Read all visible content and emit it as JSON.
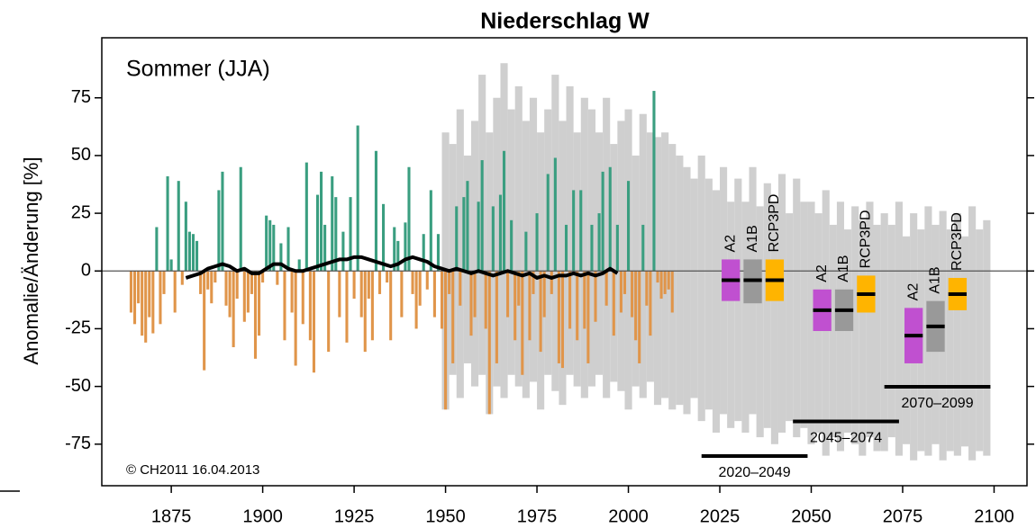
{
  "chart_data": {
    "type": "bar",
    "title": "Niederschlag W",
    "subtitle": "Sommer (JJA)",
    "ylabel": "Anomalie/Änderung [%]",
    "copyright": "© CH2011 16.04.2013",
    "xlim": [
      1856,
      2109
    ],
    "ylim": [
      -93,
      101
    ],
    "xticks": [
      1875,
      1900,
      1925,
      1950,
      1975,
      2000,
      2025,
      2050,
      2075,
      2100
    ],
    "yticks": [
      -75,
      -50,
      -25,
      0,
      25,
      50,
      75
    ],
    "annual": {
      "positive_color": "#3a9e80",
      "negative_color": "#e0954a",
      "x": [
        1864,
        1865,
        1866,
        1867,
        1868,
        1869,
        1870,
        1871,
        1872,
        1873,
        1874,
        1875,
        1876,
        1877,
        1878,
        1879,
        1880,
        1881,
        1882,
        1883,
        1884,
        1885,
        1886,
        1887,
        1888,
        1889,
        1890,
        1891,
        1892,
        1893,
        1894,
        1895,
        1896,
        1897,
        1898,
        1899,
        1900,
        1901,
        1902,
        1903,
        1904,
        1905,
        1906,
        1907,
        1908,
        1909,
        1910,
        1911,
        1912,
        1913,
        1914,
        1915,
        1916,
        1917,
        1918,
        1919,
        1920,
        1921,
        1922,
        1923,
        1924,
        1925,
        1926,
        1927,
        1928,
        1929,
        1930,
        1931,
        1932,
        1933,
        1934,
        1935,
        1936,
        1937,
        1938,
        1939,
        1940,
        1941,
        1942,
        1943,
        1944,
        1945,
        1946,
        1947,
        1948,
        1949,
        1950,
        1951,
        1952,
        1953,
        1954,
        1955,
        1956,
        1957,
        1958,
        1959,
        1960,
        1961,
        1962,
        1963,
        1964,
        1965,
        1966,
        1967,
        1968,
        1969,
        1970,
        1971,
        1972,
        1973,
        1974,
        1975,
        1976,
        1977,
        1978,
        1979,
        1980,
        1981,
        1982,
        1983,
        1984,
        1985,
        1986,
        1987,
        1988,
        1989,
        1990,
        1991,
        1992,
        1993,
        1994,
        1995,
        1996,
        1997,
        1998,
        1999,
        2000,
        2001,
        2002,
        2003,
        2004,
        2005,
        2006,
        2007,
        2008,
        2009,
        2010,
        2011,
        2012
      ],
      "values": [
        -18,
        -23,
        -14,
        -28,
        -31,
        -20,
        -27,
        19,
        -23,
        -10,
        41,
        5,
        -18,
        39,
        -6,
        30,
        17,
        16,
        13,
        -10,
        -43,
        -8,
        -14,
        -5,
        35,
        43,
        -15,
        -20,
        -33,
        -12,
        45,
        -22,
        -18,
        -10,
        -38,
        -28,
        -5,
        24,
        22,
        20,
        -6,
        12,
        -30,
        19,
        -18,
        -41,
        5,
        -23,
        47,
        -30,
        -44,
        33,
        43,
        20,
        -35,
        41,
        32,
        -20,
        17,
        -31,
        32,
        -12,
        63,
        -20,
        -35,
        -12,
        -30,
        52,
        -10,
        29,
        -5,
        -30,
        19,
        13,
        -20,
        21,
        45,
        -10,
        -25,
        -15,
        16,
        -8,
        35,
        -20,
        16,
        -25,
        -60,
        -10,
        -40,
        28,
        -15,
        32,
        39,
        -28,
        -20,
        30,
        48,
        -25,
        -62,
        28,
        -40,
        33,
        52,
        -20,
        22,
        -30,
        -15,
        -45,
        17,
        -30,
        -10,
        25,
        -35,
        -20,
        42,
        -10,
        49,
        -40,
        -42,
        20,
        -25,
        35,
        -30,
        35,
        -25,
        -40,
        20,
        -22,
        25,
        43,
        -15,
        45,
        -28,
        20,
        -18,
        -10,
        39,
        -20,
        -30,
        -40,
        20,
        -15,
        -28,
        78,
        -5,
        -12,
        -10,
        -8,
        -18
      ]
    },
    "band": {
      "color": "#cfcfcf",
      "x": [
        1950,
        1952,
        1954,
        1956,
        1958,
        1960,
        1962,
        1964,
        1966,
        1968,
        1970,
        1972,
        1974,
        1976,
        1978,
        1980,
        1982,
        1984,
        1986,
        1988,
        1990,
        1992,
        1994,
        1996,
        1998,
        2000,
        2002,
        2004,
        2006,
        2008,
        2010,
        2012,
        2014,
        2016,
        2018,
        2020,
        2022,
        2024,
        2026,
        2028,
        2030,
        2032,
        2034,
        2036,
        2038,
        2040,
        2042,
        2044,
        2046,
        2048,
        2050,
        2052,
        2054,
        2056,
        2058,
        2060,
        2062,
        2064,
        2066,
        2068,
        2070,
        2072,
        2074,
        2076,
        2078,
        2080,
        2082,
        2084,
        2086,
        2088,
        2090,
        2092,
        2094,
        2096,
        2098
      ],
      "upper": [
        60,
        55,
        70,
        50,
        65,
        85,
        60,
        75,
        90,
        70,
        80,
        65,
        75,
        60,
        70,
        85,
        65,
        80,
        60,
        75,
        70,
        60,
        75,
        55,
        65,
        70,
        50,
        68,
        60,
        58,
        60,
        55,
        50,
        45,
        40,
        50,
        40,
        35,
        45,
        30,
        40,
        30,
        45,
        28,
        38,
        30,
        42,
        25,
        40,
        30,
        30,
        25,
        35,
        20,
        30,
        18,
        28,
        22,
        30,
        20,
        25,
        20,
        30,
        15,
        25,
        18,
        28,
        20,
        26,
        18,
        25,
        15,
        28,
        18,
        22
      ],
      "lower": [
        -60,
        -45,
        -55,
        -40,
        -50,
        -45,
        -62,
        -50,
        -55,
        -45,
        -50,
        -55,
        -48,
        -60,
        -45,
        -52,
        -58,
        -45,
        -50,
        -55,
        -50,
        -45,
        -55,
        -48,
        -52,
        -60,
        -50,
        -55,
        -48,
        -58,
        -55,
        -60,
        -58,
        -62,
        -55,
        -65,
        -60,
        -70,
        -62,
        -68,
        -65,
        -70,
        -62,
        -72,
        -68,
        -75,
        -70,
        -65,
        -72,
        -68,
        -75,
        -70,
        -80,
        -72,
        -78,
        -70,
        -75,
        -80,
        -72,
        -78,
        -78,
        -72,
        -80,
        -75,
        -82,
        -78,
        -80,
        -75,
        -82,
        -78,
        -80,
        -76,
        -82,
        -78,
        -80
      ]
    },
    "running_mean": {
      "color": "#000000",
      "x": [
        1879,
        1881,
        1883,
        1885,
        1887,
        1889,
        1891,
        1893,
        1895,
        1897,
        1899,
        1901,
        1903,
        1905,
        1907,
        1909,
        1911,
        1913,
        1915,
        1917,
        1919,
        1921,
        1923,
        1925,
        1927,
        1929,
        1931,
        1933,
        1935,
        1937,
        1939,
        1941,
        1943,
        1945,
        1947,
        1949,
        1951,
        1953,
        1955,
        1957,
        1959,
        1961,
        1963,
        1965,
        1967,
        1969,
        1971,
        1973,
        1975,
        1977,
        1979,
        1981,
        1983,
        1985,
        1987,
        1989,
        1991,
        1993,
        1995,
        1997
      ],
      "values": [
        -3,
        -2,
        -1,
        1,
        2,
        3,
        2,
        0,
        1,
        -1,
        -1,
        1,
        3,
        3,
        1,
        0,
        0,
        1,
        2,
        3,
        4,
        5,
        5,
        6,
        6,
        5,
        4,
        3,
        2,
        3,
        5,
        6,
        5,
        4,
        2,
        1,
        0,
        1,
        0,
        -1,
        0,
        -1,
        -2,
        -1,
        0,
        -1,
        -2,
        -1,
        -3,
        -2,
        -3,
        -2,
        -2,
        -1,
        -2,
        -1,
        -2,
        -1,
        1,
        -1
      ]
    },
    "scenarios": {
      "periods": [
        {
          "label": "2020–2049",
          "start": 2020,
          "end": 2049
        },
        {
          "label": "2045–2074",
          "start": 2045,
          "end": 2074
        },
        {
          "label": "2070–2099",
          "start": 2070,
          "end": 2099
        }
      ],
      "series": [
        {
          "name": "A2",
          "color": "#c050d0",
          "x": [
            2028,
            2053,
            2078
          ],
          "low": [
            -13,
            -26,
            -40
          ],
          "median": [
            -4,
            -17,
            -28
          ],
          "high": [
            5,
            -8,
            -16
          ]
        },
        {
          "name": "A1B",
          "color": "#999999",
          "x": [
            2034,
            2059,
            2084
          ],
          "low": [
            -14,
            -26,
            -35
          ],
          "median": [
            -4,
            -17,
            -24
          ],
          "high": [
            5,
            -8,
            -13
          ]
        },
        {
          "name": "RCP3PD",
          "color": "#ffb400",
          "x": [
            2040,
            2065,
            2090
          ],
          "low": [
            -13,
            -18,
            -17
          ],
          "median": [
            -4,
            -10,
            -10
          ],
          "high": [
            5,
            -2,
            -3
          ]
        }
      ]
    }
  }
}
